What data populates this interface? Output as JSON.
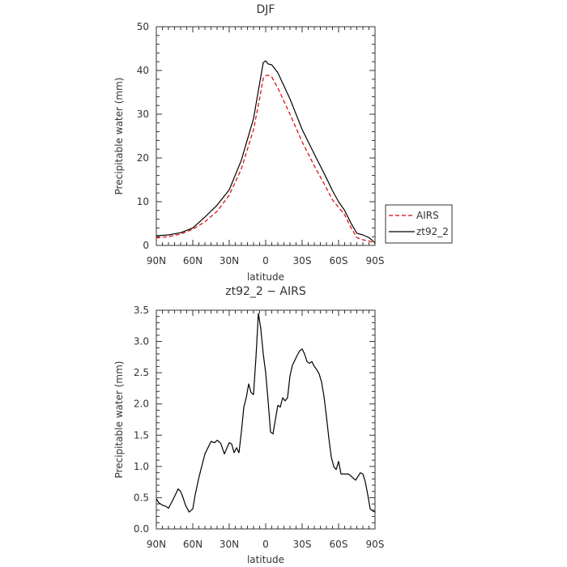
{
  "chart_data": [
    {
      "type": "line",
      "title": "DJF",
      "xlabel": "latitude",
      "ylabel": "Precipitable water  (mm)",
      "xlim": [
        90,
        -90
      ],
      "ylim": [
        0,
        50
      ],
      "xticks": [
        90,
        60,
        30,
        0,
        -30,
        -60,
        -90
      ],
      "xtick_labels": [
        "90N",
        "60N",
        "30N",
        "0",
        "30S",
        "60S",
        "90S"
      ],
      "yticks": [
        0,
        10,
        20,
        30,
        40,
        50
      ],
      "ytick_labels": [
        "0",
        "10",
        "20",
        "30",
        "40",
        "50"
      ],
      "legend_position": "right",
      "series": [
        {
          "name": "AIRS",
          "color": "#dd0000",
          "style": "dashed",
          "x": [
            90,
            80,
            70,
            60,
            50,
            40,
            30,
            20,
            10,
            5,
            2,
            0,
            -2,
            -5,
            -10,
            -20,
            -30,
            -40,
            -50,
            -55,
            -60,
            -65,
            -70,
            -75,
            -80,
            -85,
            -90
          ],
          "y": [
            1.7,
            2.0,
            2.6,
            3.7,
            5.4,
            7.8,
            11.5,
            17.5,
            26.5,
            33.5,
            38.2,
            38.8,
            38.9,
            38.5,
            36.0,
            30.0,
            23.7,
            18.2,
            13.1,
            10.4,
            8.7,
            7.0,
            4.2,
            1.8,
            1.3,
            1.0,
            0.5
          ]
        },
        {
          "name": "zt92_2",
          "color": "#000000",
          "style": "solid",
          "x": [
            90,
            80,
            70,
            60,
            50,
            40,
            30,
            20,
            10,
            5,
            2,
            0,
            -2,
            -5,
            -10,
            -20,
            -30,
            -40,
            -50,
            -55,
            -60,
            -65,
            -70,
            -75,
            -80,
            -85,
            -90
          ],
          "y": [
            2.2,
            2.4,
            2.9,
            4.0,
            6.5,
            9.2,
            12.7,
            19.5,
            29.0,
            37.0,
            41.8,
            42.2,
            41.5,
            41.3,
            39.5,
            33.5,
            26.5,
            20.9,
            15.4,
            12.5,
            10.0,
            8.0,
            5.2,
            2.8,
            2.4,
            1.8,
            0.6
          ]
        }
      ]
    },
    {
      "type": "line",
      "title": "zt92_2 − AIRS",
      "xlabel": "latitude",
      "ylabel": "Precipitable water  (mm)",
      "xlim": [
        90,
        -90
      ],
      "ylim": [
        0,
        3.5
      ],
      "xticks": [
        90,
        60,
        30,
        0,
        -30,
        -60,
        -90
      ],
      "xtick_labels": [
        "90N",
        "60N",
        "30N",
        "0",
        "30S",
        "60S",
        "90S"
      ],
      "yticks": [
        0,
        0.5,
        1.0,
        1.5,
        2.0,
        2.5,
        3.0,
        3.5
      ],
      "ytick_labels": [
        "0.0",
        "0.5",
        "1.0",
        "1.5",
        "2.0",
        "2.5",
        "3.0",
        "3.5"
      ],
      "series": [
        {
          "color": "#000000",
          "style": "solid",
          "x": [
            90,
            88,
            85,
            82,
            80,
            76,
            72,
            70,
            68,
            66,
            63,
            60,
            58,
            55,
            50,
            45,
            42,
            40,
            37,
            34,
            30,
            28,
            26,
            24,
            22,
            20,
            18,
            16,
            14,
            12,
            10,
            8,
            6,
            4,
            2,
            0,
            -2,
            -4,
            -6,
            -8,
            -10,
            -12,
            -14,
            -16,
            -18,
            -20,
            -22,
            -24,
            -26,
            -28,
            -30,
            -32,
            -34,
            -36,
            -38,
            -40,
            -42,
            -44,
            -46,
            -48,
            -50,
            -52,
            -54,
            -56,
            -58,
            -60,
            -62,
            -64,
            -66,
            -68,
            -70,
            -74,
            -78,
            -80,
            -82,
            -84,
            -86,
            -88,
            -90
          ],
          "y": [
            0.48,
            0.42,
            0.38,
            0.36,
            0.33,
            0.48,
            0.64,
            0.6,
            0.5,
            0.38,
            0.27,
            0.32,
            0.55,
            0.82,
            1.2,
            1.4,
            1.38,
            1.42,
            1.37,
            1.2,
            1.38,
            1.36,
            1.22,
            1.3,
            1.22,
            1.55,
            1.95,
            2.1,
            2.32,
            2.18,
            2.15,
            2.75,
            3.45,
            3.2,
            2.8,
            2.5,
            2.05,
            1.55,
            1.52,
            1.75,
            1.98,
            1.95,
            2.1,
            2.05,
            2.1,
            2.45,
            2.62,
            2.7,
            2.78,
            2.85,
            2.88,
            2.8,
            2.68,
            2.65,
            2.68,
            2.6,
            2.55,
            2.48,
            2.35,
            2.12,
            1.8,
            1.45,
            1.15,
            1.0,
            0.95,
            1.08,
            0.88,
            0.88,
            0.88,
            0.88,
            0.85,
            0.78,
            0.9,
            0.88,
            0.75,
            0.55,
            0.32,
            0.29,
            0.27
          ]
        }
      ]
    }
  ],
  "legend": {
    "items": [
      {
        "label": "AIRS"
      },
      {
        "label": "zt92_2"
      }
    ]
  }
}
